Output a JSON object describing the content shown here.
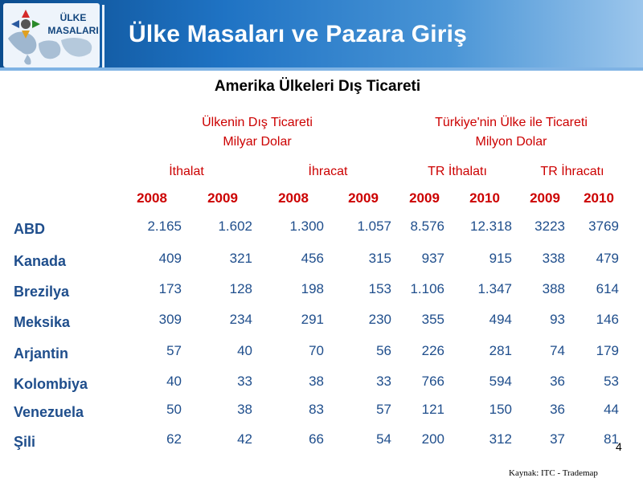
{
  "header": {
    "logo_line1": "ÜLKE",
    "logo_line2": "MASALARI",
    "title": "Ülke Masaları ve Pazara Giriş"
  },
  "slide": {
    "subtitle": "Amerika Ülkeleri Dış Ticareti",
    "group1_line1": "Ülkenin Dış Ticareti",
    "group1_line2": "Milyar Dolar",
    "group2_line1": "Türkiye'nin Ülke ile Ticareti",
    "group2_line2": "Milyon Dolar",
    "sub_headers": [
      "İthalat",
      "İhracat",
      "TR İthalatı",
      "TR İhracatı"
    ],
    "years": [
      "2008",
      "2009",
      "2008",
      "2009",
      "2009",
      "2010",
      "2009",
      "2010"
    ],
    "page_number": "4",
    "source": "Kaynak: ITC - Trademap"
  },
  "table": {
    "rows": [
      {
        "country": "ABD",
        "values": [
          "2.165",
          "1.602",
          "1.300",
          "1.057",
          "8.576",
          "12.318",
          "3223",
          "3769"
        ]
      },
      {
        "country": "Kanada",
        "values": [
          "409",
          "321",
          "456",
          "315",
          "937",
          "915",
          "338",
          "479"
        ]
      },
      {
        "country": "Brezilya",
        "values": [
          "173",
          "128",
          "198",
          "153",
          "1.106",
          "1.347",
          "388",
          "614"
        ]
      },
      {
        "country": "Meksika",
        "values": [
          "309",
          "234",
          "291",
          "230",
          "355",
          "494",
          "93",
          "146"
        ]
      },
      {
        "country": "Arjantin",
        "values": [
          "57",
          "40",
          "70",
          "56",
          "226",
          "281",
          "74",
          "179"
        ]
      },
      {
        "country": "Kolombiya",
        "values": [
          "40",
          "33",
          "38",
          "33",
          "766",
          "594",
          "36",
          "53"
        ]
      },
      {
        "country": "Venezuela",
        "values": [
          "50",
          "38",
          "83",
          "57",
          "121",
          "150",
          "36",
          "44"
        ]
      },
      {
        "country": "Şili",
        "values": [
          "62",
          "42",
          "66",
          "54",
          "200",
          "312",
          "37",
          "81"
        ]
      }
    ]
  },
  "colors": {
    "banner_dark": "#0b4c8e",
    "banner_light": "#9cc6ec",
    "header_red": "#cc0000",
    "data_blue": "#1f4e8c"
  },
  "icons": [
    "world-map-icon",
    "compass-arrows-icon"
  ]
}
